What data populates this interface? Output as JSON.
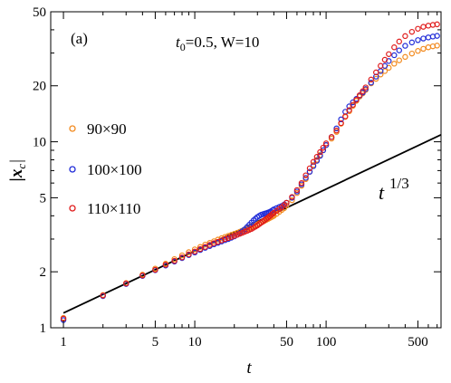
{
  "chart_data": {
    "type": "scatter",
    "xscale": "log",
    "yscale": "log",
    "xlim": [
      0.8,
      750
    ],
    "ylim": [
      1,
      50
    ],
    "xlabel": "t",
    "ylabel": "|x_c|",
    "panel_label": "(a)",
    "parameters_text": "t0=0.5, W=10",
    "x_ticks": [
      1,
      5,
      10,
      50,
      100,
      500
    ],
    "x_tick_labels": [
      "1",
      "5",
      "10",
      "50",
      "100",
      "500"
    ],
    "y_ticks": [
      1,
      2,
      5,
      10,
      20,
      50
    ],
    "y_tick_labels": [
      "1",
      "2",
      "5",
      "10",
      "20",
      "50"
    ],
    "legend_position": "left",
    "series": [
      {
        "name": "90×90",
        "color": "#f28a1e",
        "marker": "open-circle",
        "points": [
          [
            1,
            1.13
          ],
          [
            2,
            1.5
          ],
          [
            3,
            1.74
          ],
          [
            4,
            1.93
          ],
          [
            5,
            2.08
          ],
          [
            6,
            2.21
          ],
          [
            7,
            2.34
          ],
          [
            8,
            2.45
          ],
          [
            9,
            2.55
          ],
          [
            10,
            2.64
          ],
          [
            11,
            2.72
          ],
          [
            12,
            2.8
          ],
          [
            13,
            2.86
          ],
          [
            14,
            2.92
          ],
          [
            15,
            2.98
          ],
          [
            16,
            3.03
          ],
          [
            17,
            3.08
          ],
          [
            18,
            3.12
          ],
          [
            19,
            3.16
          ],
          [
            20,
            3.2
          ],
          [
            21,
            3.24
          ],
          [
            22,
            3.28
          ],
          [
            23,
            3.32
          ],
          [
            24,
            3.36
          ],
          [
            25,
            3.4
          ],
          [
            26,
            3.44
          ],
          [
            27,
            3.48
          ],
          [
            28,
            3.52
          ],
          [
            29,
            3.56
          ],
          [
            30,
            3.6
          ],
          [
            31,
            3.64
          ],
          [
            32,
            3.68
          ],
          [
            33,
            3.72
          ],
          [
            34,
            3.76
          ],
          [
            35,
            3.8
          ],
          [
            36,
            3.84
          ],
          [
            37,
            3.88
          ],
          [
            38,
            3.92
          ],
          [
            39,
            3.96
          ],
          [
            40,
            4.0
          ],
          [
            42,
            4.1
          ],
          [
            44,
            4.2
          ],
          [
            46,
            4.3
          ],
          [
            48,
            4.4
          ],
          [
            50,
            4.55
          ],
          [
            55,
            4.85
          ],
          [
            60,
            5.3
          ],
          [
            65,
            5.8
          ],
          [
            70,
            6.3
          ],
          [
            75,
            6.9
          ],
          [
            80,
            7.5
          ],
          [
            85,
            8.0
          ],
          [
            90,
            8.5
          ],
          [
            95,
            9.0
          ],
          [
            100,
            9.6
          ],
          [
            110,
            10.4
          ],
          [
            120,
            11.3
          ],
          [
            130,
            12.5
          ],
          [
            140,
            13.6
          ],
          [
            150,
            14.6
          ],
          [
            160,
            15.6
          ],
          [
            170,
            16.6
          ],
          [
            180,
            17.5
          ],
          [
            190,
            18.2
          ],
          [
            200,
            19.0
          ],
          [
            220,
            20.6
          ],
          [
            240,
            21.8
          ],
          [
            260,
            23.0
          ],
          [
            280,
            24.0
          ],
          [
            300,
            25.0
          ],
          [
            330,
            26.3
          ],
          [
            360,
            27.4
          ],
          [
            400,
            28.6
          ],
          [
            450,
            29.8
          ],
          [
            500,
            30.8
          ],
          [
            550,
            31.6
          ],
          [
            600,
            32.2
          ],
          [
            650,
            32.6
          ],
          [
            700,
            32.9
          ]
        ]
      },
      {
        "name": "100×100",
        "color": "#1f2bd8",
        "marker": "open-circle",
        "points": [
          [
            1,
            1.1
          ],
          [
            2,
            1.48
          ],
          [
            3,
            1.72
          ],
          [
            4,
            1.9
          ],
          [
            5,
            2.04
          ],
          [
            6,
            2.16
          ],
          [
            7,
            2.27
          ],
          [
            8,
            2.37
          ],
          [
            9,
            2.46
          ],
          [
            10,
            2.54
          ],
          [
            11,
            2.62
          ],
          [
            12,
            2.69
          ],
          [
            13,
            2.75
          ],
          [
            14,
            2.81
          ],
          [
            15,
            2.86
          ],
          [
            16,
            2.91
          ],
          [
            17,
            2.96
          ],
          [
            18,
            3.0
          ],
          [
            19,
            3.05
          ],
          [
            20,
            3.1
          ],
          [
            21,
            3.16
          ],
          [
            22,
            3.22
          ],
          [
            23,
            3.3
          ],
          [
            24,
            3.38
          ],
          [
            25,
            3.48
          ],
          [
            26,
            3.58
          ],
          [
            27,
            3.68
          ],
          [
            28,
            3.78
          ],
          [
            29,
            3.86
          ],
          [
            30,
            3.94
          ],
          [
            31,
            4.0
          ],
          [
            32,
            4.05
          ],
          [
            33,
            4.08
          ],
          [
            34,
            4.11
          ],
          [
            35,
            4.13
          ],
          [
            36,
            4.16
          ],
          [
            37,
            4.19
          ],
          [
            38,
            4.23
          ],
          [
            39,
            4.28
          ],
          [
            40,
            4.33
          ],
          [
            42,
            4.4
          ],
          [
            44,
            4.46
          ],
          [
            46,
            4.52
          ],
          [
            48,
            4.6
          ],
          [
            50,
            4.7
          ],
          [
            55,
            5.0
          ],
          [
            60,
            5.4
          ],
          [
            65,
            5.9
          ],
          [
            70,
            6.4
          ],
          [
            75,
            6.9
          ],
          [
            80,
            7.4
          ],
          [
            85,
            7.9
          ],
          [
            90,
            8.4
          ],
          [
            95,
            9.0
          ],
          [
            100,
            9.6
          ],
          [
            110,
            10.6
          ],
          [
            120,
            11.8
          ],
          [
            130,
            13.2
          ],
          [
            140,
            14.5
          ],
          [
            150,
            15.5
          ],
          [
            160,
            16.3
          ],
          [
            170,
            17.0
          ],
          [
            180,
            17.7
          ],
          [
            190,
            18.4
          ],
          [
            200,
            19.2
          ],
          [
            220,
            20.8
          ],
          [
            240,
            22.4
          ],
          [
            260,
            24.0
          ],
          [
            280,
            25.6
          ],
          [
            300,
            27.2
          ],
          [
            330,
            29.2
          ],
          [
            360,
            31.0
          ],
          [
            400,
            32.8
          ],
          [
            450,
            34.2
          ],
          [
            500,
            35.2
          ],
          [
            550,
            35.9
          ],
          [
            600,
            36.4
          ],
          [
            650,
            36.8
          ],
          [
            700,
            37.1
          ]
        ]
      },
      {
        "name": "110×110",
        "color": "#e01b1b",
        "marker": "open-circle",
        "points": [
          [
            1,
            1.12
          ],
          [
            2,
            1.49
          ],
          [
            3,
            1.73
          ],
          [
            4,
            1.91
          ],
          [
            5,
            2.05
          ],
          [
            6,
            2.18
          ],
          [
            7,
            2.29
          ],
          [
            8,
            2.39
          ],
          [
            9,
            2.48
          ],
          [
            10,
            2.57
          ],
          [
            11,
            2.65
          ],
          [
            12,
            2.72
          ],
          [
            13,
            2.79
          ],
          [
            14,
            2.85
          ],
          [
            15,
            2.9
          ],
          [
            16,
            2.95
          ],
          [
            17,
            3.0
          ],
          [
            18,
            3.04
          ],
          [
            19,
            3.08
          ],
          [
            20,
            3.12
          ],
          [
            21,
            3.16
          ],
          [
            22,
            3.2
          ],
          [
            23,
            3.24
          ],
          [
            24,
            3.28
          ],
          [
            25,
            3.32
          ],
          [
            26,
            3.36
          ],
          [
            27,
            3.4
          ],
          [
            28,
            3.45
          ],
          [
            29,
            3.5
          ],
          [
            30,
            3.55
          ],
          [
            31,
            3.61
          ],
          [
            32,
            3.67
          ],
          [
            33,
            3.73
          ],
          [
            34,
            3.79
          ],
          [
            35,
            3.85
          ],
          [
            36,
            3.91
          ],
          [
            37,
            3.97
          ],
          [
            38,
            4.03
          ],
          [
            39,
            4.09
          ],
          [
            40,
            4.15
          ],
          [
            42,
            4.25
          ],
          [
            44,
            4.35
          ],
          [
            46,
            4.45
          ],
          [
            48,
            4.57
          ],
          [
            50,
            4.7
          ],
          [
            55,
            5.05
          ],
          [
            60,
            5.5
          ],
          [
            65,
            6.0
          ],
          [
            70,
            6.6
          ],
          [
            75,
            7.2
          ],
          [
            80,
            7.8
          ],
          [
            85,
            8.3
          ],
          [
            90,
            8.8
          ],
          [
            95,
            9.3
          ],
          [
            100,
            9.8
          ],
          [
            110,
            10.6
          ],
          [
            120,
            11.5
          ],
          [
            130,
            12.6
          ],
          [
            140,
            13.7
          ],
          [
            150,
            14.8
          ],
          [
            160,
            15.8
          ],
          [
            170,
            16.8
          ],
          [
            180,
            17.8
          ],
          [
            190,
            18.7
          ],
          [
            200,
            19.6
          ],
          [
            220,
            21.6
          ],
          [
            240,
            23.6
          ],
          [
            260,
            25.6
          ],
          [
            280,
            27.6
          ],
          [
            300,
            29.6
          ],
          [
            330,
            32.2
          ],
          [
            360,
            34.6
          ],
          [
            400,
            37.0
          ],
          [
            450,
            39.0
          ],
          [
            500,
            40.5
          ],
          [
            550,
            41.5
          ],
          [
            600,
            42.1
          ],
          [
            650,
            42.5
          ],
          [
            700,
            42.8
          ]
        ]
      }
    ],
    "reference_line": {
      "label": "1/3",
      "exponent": 0.3333333,
      "coefficient": 1.2,
      "color": "#000000"
    }
  }
}
